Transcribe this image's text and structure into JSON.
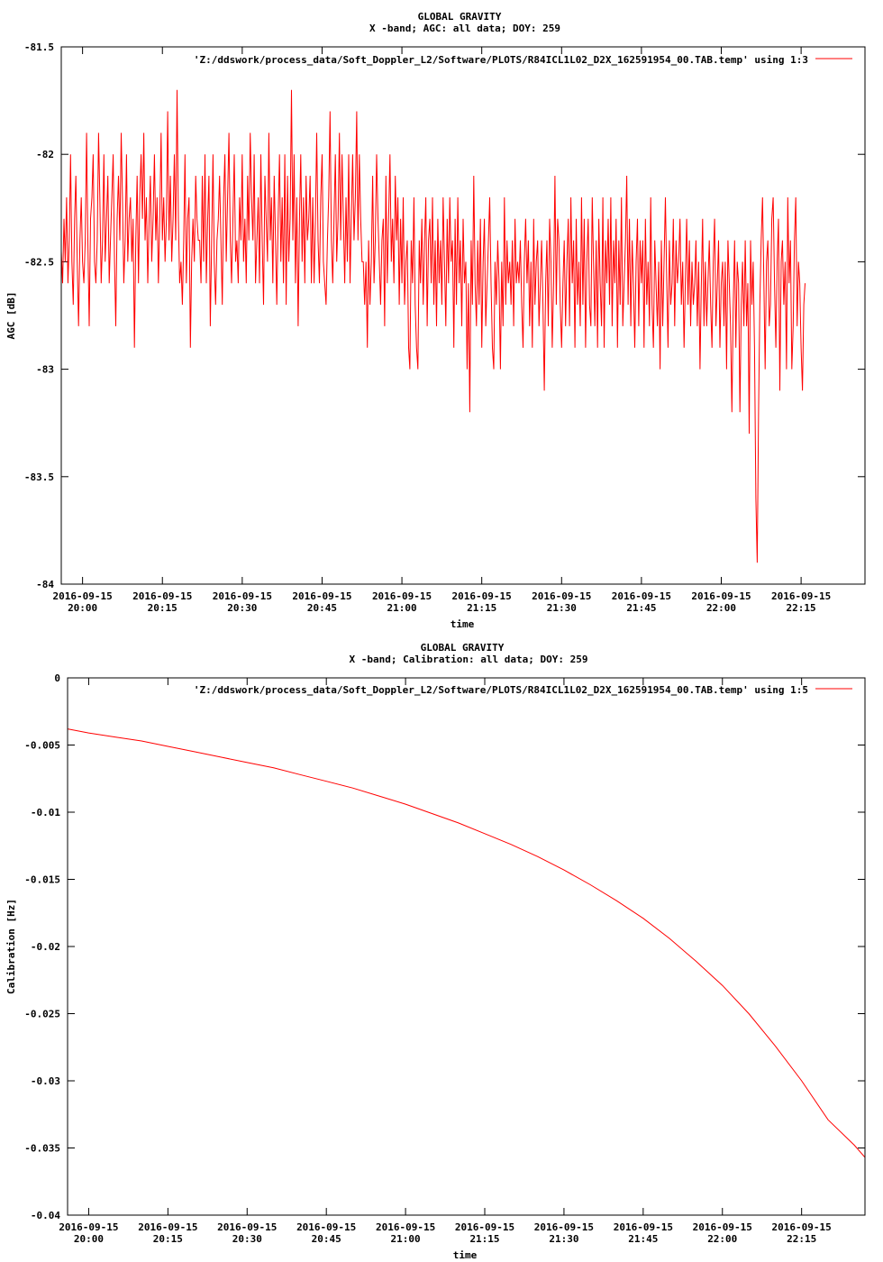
{
  "chart_data": [
    {
      "type": "line",
      "title": "GLOBAL GRAVITY",
      "subtitle": "X -band; AGC: all data; DOY: 259",
      "xlabel": "time",
      "ylabel": "AGC [dB]",
      "ylim": [
        -84,
        -81.5
      ],
      "yticks": [
        -84,
        -83.5,
        -83,
        -82.5,
        -82,
        -81.5
      ],
      "ytick_labels": [
        "-84",
        "-83.5",
        "-83",
        "-82.5",
        "-82",
        "-81.5"
      ],
      "xlim_minutes": [
        1196,
        1347
      ],
      "xtick_minutes": [
        1200,
        1215,
        1230,
        1245,
        1260,
        1275,
        1290,
        1305,
        1320,
        1335
      ],
      "xtick_date": "2016-09-15",
      "xtick_times": [
        "20:00",
        "20:15",
        "20:30",
        "20:45",
        "21:00",
        "21:15",
        "21:30",
        "21:45",
        "22:00",
        "22:15"
      ],
      "grid": false,
      "legend_position": "top-right",
      "series": [
        {
          "name": "'Z:/ddswork/process_data/Soft_Doppler_L2/Software/PLOTS/R84ICL1L02_D2X_162591954_00.TAB.temp' using 1:3",
          "color": "#ff0000",
          "x_start_minutes": 1196,
          "x_step_minutes": 0.25,
          "values": [
            -82.45,
            -82.6,
            -82.3,
            -82.5,
            -82.2,
            -82.6,
            -82.4,
            -82.0,
            -82.5,
            -82.7,
            -82.3,
            -82.1,
            -82.5,
            -82.8,
            -82.4,
            -82.2,
            -82.5,
            -82.6,
            -82.4,
            -81.9,
            -82.4,
            -82.8,
            -82.3,
            -82.2,
            -82.0,
            -82.5,
            -82.6,
            -82.4,
            -81.9,
            -82.2,
            -82.6,
            -82.4,
            -82.0,
            -82.5,
            -82.3,
            -82.1,
            -82.6,
            -82.4,
            -82.2,
            -82.0,
            -82.5,
            -82.8,
            -82.3,
            -82.1,
            -82.4,
            -81.9,
            -82.2,
            -82.6,
            -82.4,
            -82.0,
            -82.5,
            -82.3,
            -82.2,
            -82.5,
            -82.3,
            -82.9,
            -82.4,
            -82.1,
            -82.6,
            -82.2,
            -82.0,
            -82.3,
            -81.9,
            -82.4,
            -82.2,
            -82.6,
            -82.3,
            -82.1,
            -82.5,
            -82.3,
            -82.0,
            -82.4,
            -82.2,
            -82.6,
            -82.3,
            -81.9,
            -82.4,
            -82.2,
            -82.5,
            -82.3,
            -81.8,
            -82.4,
            -82.1,
            -82.5,
            -82.3,
            -82.0,
            -82.4,
            -81.7,
            -82.3,
            -82.6,
            -82.5,
            -82.7,
            -82.4,
            -82.0,
            -82.6,
            -82.3,
            -82.2,
            -82.9,
            -82.5,
            -82.3,
            -82.5,
            -82.1,
            -82.3,
            -82.4,
            -82.4,
            -82.6,
            -82.1,
            -82.5,
            -82.0,
            -82.6,
            -82.3,
            -82.1,
            -82.8,
            -82.4,
            -82.0,
            -82.5,
            -82.7,
            -82.4,
            -82.3,
            -82.1,
            -82.4,
            -82.7,
            -82.2,
            -82.0,
            -82.5,
            -82.2,
            -81.9,
            -82.4,
            -82.6,
            -82.3,
            -82.0,
            -82.5,
            -82.4,
            -82.6,
            -82.2,
            -82.4,
            -82.0,
            -82.5,
            -82.3,
            -82.6,
            -82.1,
            -82.4,
            -81.9,
            -82.2,
            -82.4,
            -82.0,
            -82.6,
            -82.4,
            -82.2,
            -82.6,
            -82.0,
            -82.4,
            -82.7,
            -82.1,
            -82.3,
            -82.5,
            -81.9,
            -82.4,
            -82.2,
            -82.6,
            -82.1,
            -82.4,
            -82.7,
            -82.3,
            -82.0,
            -82.5,
            -82.2,
            -82.6,
            -82.0,
            -82.7,
            -82.1,
            -82.5,
            -82.3,
            -81.7,
            -82.4,
            -82.0,
            -82.6,
            -82.2,
            -82.8,
            -82.3,
            -82.0,
            -82.5,
            -82.2,
            -82.6,
            -82.1,
            -82.4,
            -82.3,
            -82.1,
            -82.6,
            -82.2,
            -82.6,
            -82.3,
            -81.9,
            -82.4,
            -82.6,
            -82.2,
            -82.0,
            -82.5,
            -82.6,
            -82.7,
            -82.4,
            -82.2,
            -81.8,
            -82.4,
            -82.6,
            -82.3,
            -82.0,
            -82.5,
            -82.3,
            -81.9,
            -82.4,
            -82.0,
            -82.3,
            -82.6,
            -82.2,
            -82.5,
            -82.0,
            -82.6,
            -82.3,
            -82.0,
            -82.4,
            -82.2,
            -81.8,
            -82.4,
            -82.0,
            -82.3,
            -82.5,
            -82.5,
            -82.7,
            -82.5,
            -82.9,
            -82.4,
            -82.7,
            -82.5,
            -82.1,
            -82.6,
            -82.4,
            -82.0,
            -82.3,
            -82.5,
            -82.7,
            -82.4,
            -82.3,
            -82.8,
            -82.1,
            -82.6,
            -82.3,
            -82.0,
            -82.5,
            -82.3,
            -82.6,
            -82.1,
            -82.4,
            -82.2,
            -82.7,
            -82.3,
            -82.6,
            -82.2,
            -82.7,
            -82.5,
            -82.4,
            -82.9,
            -83.0,
            -82.4,
            -82.6,
            -82.2,
            -82.7,
            -82.9,
            -83.0,
            -82.4,
            -82.6,
            -82.3,
            -82.7,
            -82.4,
            -82.2,
            -82.8,
            -82.4,
            -82.3,
            -82.6,
            -82.2,
            -82.7,
            -82.4,
            -82.8,
            -82.3,
            -82.6,
            -82.4,
            -82.7,
            -82.2,
            -82.5,
            -82.8,
            -82.3,
            -82.6,
            -82.2,
            -82.5,
            -82.4,
            -82.9,
            -82.3,
            -82.7,
            -82.2,
            -82.6,
            -82.4,
            -82.8,
            -82.3,
            -82.6,
            -82.5,
            -83.0,
            -82.6,
            -83.2,
            -82.4,
            -82.7,
            -82.1,
            -82.6,
            -82.8,
            -82.4,
            -82.7,
            -82.3,
            -82.9,
            -82.5,
            -82.3,
            -82.8,
            -82.6,
            -82.4,
            -82.2,
            -82.6,
            -82.9,
            -83.0,
            -82.5,
            -82.7,
            -82.4,
            -82.6,
            -83.0,
            -82.5,
            -82.8,
            -82.2,
            -82.7,
            -82.4,
            -82.6,
            -82.5,
            -82.7,
            -82.4,
            -82.8,
            -82.3,
            -82.6,
            -82.5,
            -82.6,
            -82.4,
            -82.7,
            -82.9,
            -82.5,
            -82.3,
            -82.6,
            -82.4,
            -82.8,
            -82.5,
            -82.9,
            -82.3,
            -82.7,
            -82.5,
            -82.4,
            -82.8,
            -82.6,
            -82.4,
            -82.7,
            -83.1,
            -82.6,
            -82.4,
            -82.8,
            -82.3,
            -82.5,
            -82.9,
            -82.6,
            -82.1,
            -82.7,
            -82.3,
            -82.4,
            -82.7,
            -82.9,
            -82.6,
            -82.4,
            -82.8,
            -82.5,
            -82.3,
            -82.8,
            -82.2,
            -82.6,
            -82.4,
            -82.9,
            -82.3,
            -82.7,
            -82.5,
            -82.8,
            -82.2,
            -82.7,
            -82.3,
            -82.9,
            -82.5,
            -82.3,
            -82.7,
            -82.8,
            -82.2,
            -82.5,
            -82.8,
            -82.4,
            -82.9,
            -82.3,
            -82.6,
            -82.8,
            -82.2,
            -82.9,
            -82.4,
            -82.6,
            -82.3,
            -82.7,
            -82.2,
            -82.8,
            -82.4,
            -82.6,
            -82.3,
            -82.9,
            -82.4,
            -82.7,
            -82.2,
            -82.8,
            -82.6,
            -82.4,
            -82.1,
            -82.7,
            -82.3,
            -82.8,
            -82.4,
            -82.6,
            -82.9,
            -82.5,
            -82.3,
            -82.8,
            -82.4,
            -82.6,
            -82.4,
            -82.9,
            -82.3,
            -82.7,
            -82.5,
            -82.8,
            -82.2,
            -82.7,
            -82.9,
            -82.4,
            -82.6,
            -82.8,
            -82.5,
            -83.0,
            -82.4,
            -82.8,
            -82.5,
            -82.2,
            -82.6,
            -82.9,
            -82.4,
            -82.7,
            -82.6,
            -82.3,
            -82.8,
            -82.4,
            -82.6,
            -82.5,
            -82.3,
            -82.7,
            -82.5,
            -82.9,
            -82.6,
            -82.3,
            -82.7,
            -82.4,
            -82.8,
            -82.5,
            -82.7,
            -82.6,
            -82.4,
            -82.8,
            -82.5,
            -83.0,
            -82.6,
            -82.3,
            -82.8,
            -82.5,
            -82.8,
            -82.6,
            -82.4,
            -82.7,
            -82.9,
            -82.5,
            -82.3,
            -82.8,
            -82.6,
            -82.4,
            -82.9,
            -82.6,
            -82.5,
            -82.8,
            -82.5,
            -83.0,
            -82.4,
            -82.6,
            -82.8,
            -83.2,
            -82.7,
            -82.4,
            -82.9,
            -82.5,
            -82.6,
            -83.2,
            -82.7,
            -82.5,
            -82.8,
            -82.4,
            -82.8,
            -82.6,
            -83.3,
            -82.4,
            -82.7,
            -82.5,
            -82.9,
            -83.6,
            -83.9,
            -83.2,
            -82.7,
            -82.4,
            -82.2,
            -82.6,
            -83.0,
            -82.5,
            -82.4,
            -82.8,
            -82.7,
            -82.3,
            -82.2,
            -82.6,
            -82.9,
            -82.5,
            -82.3,
            -83.1,
            -82.5,
            -82.4,
            -82.7,
            -82.5,
            -83.0,
            -82.2,
            -82.6,
            -82.4,
            -83.0,
            -82.8,
            -82.4,
            -82.2,
            -82.8,
            -82.5,
            -82.6,
            -82.9,
            -83.1,
            -82.7,
            -82.6
          ]
        }
      ]
    },
    {
      "type": "line",
      "title": "GLOBAL GRAVITY",
      "subtitle": "X -band; Calibration: all data; DOY: 259",
      "xlabel": "time",
      "ylabel": "Calibration [Hz]",
      "ylim": [
        -0.04,
        0
      ],
      "yticks": [
        -0.04,
        -0.035,
        -0.03,
        -0.025,
        -0.02,
        -0.015,
        -0.01,
        -0.005,
        0
      ],
      "ytick_labels": [
        "-0.04",
        "-0.035",
        "-0.03",
        "-0.025",
        "-0.02",
        "-0.015",
        "-0.01",
        "-0.005",
        "0"
      ],
      "xlim_minutes": [
        1196,
        1347
      ],
      "xtick_minutes": [
        1200,
        1215,
        1230,
        1245,
        1260,
        1275,
        1290,
        1305,
        1320,
        1335
      ],
      "xtick_date": "2016-09-15",
      "xtick_times": [
        "20:00",
        "20:15",
        "20:30",
        "20:45",
        "21:00",
        "21:15",
        "21:30",
        "21:45",
        "22:00",
        "22:15"
      ],
      "grid": false,
      "legend_position": "top-right",
      "series": [
        {
          "name": "'Z:/ddswork/process_data/Soft_Doppler_L2/Software/PLOTS/R84ICL1L02_D2X_162591954_00.TAB.temp' using 1:5",
          "color": "#ff0000",
          "x_minutes": [
            1196,
            1200,
            1205,
            1210,
            1215,
            1220,
            1225,
            1230,
            1235,
            1240,
            1245,
            1250,
            1255,
            1260,
            1265,
            1270,
            1275,
            1280,
            1285,
            1290,
            1295,
            1300,
            1305,
            1310,
            1315,
            1320,
            1325,
            1330,
            1335,
            1340,
            1345,
            1347
          ],
          "values": [
            -0.0038,
            -0.0041,
            -0.0044,
            -0.0047,
            -0.0051,
            -0.0055,
            -0.0059,
            -0.0063,
            -0.0067,
            -0.0072,
            -0.0077,
            -0.0082,
            -0.0088,
            -0.0094,
            -0.0101,
            -0.0108,
            -0.0116,
            -0.0124,
            -0.0133,
            -0.0143,
            -0.0154,
            -0.0166,
            -0.0179,
            -0.0194,
            -0.0211,
            -0.0229,
            -0.025,
            -0.0274,
            -0.03,
            -0.0329,
            -0.0348,
            -0.0357
          ]
        }
      ]
    }
  ]
}
